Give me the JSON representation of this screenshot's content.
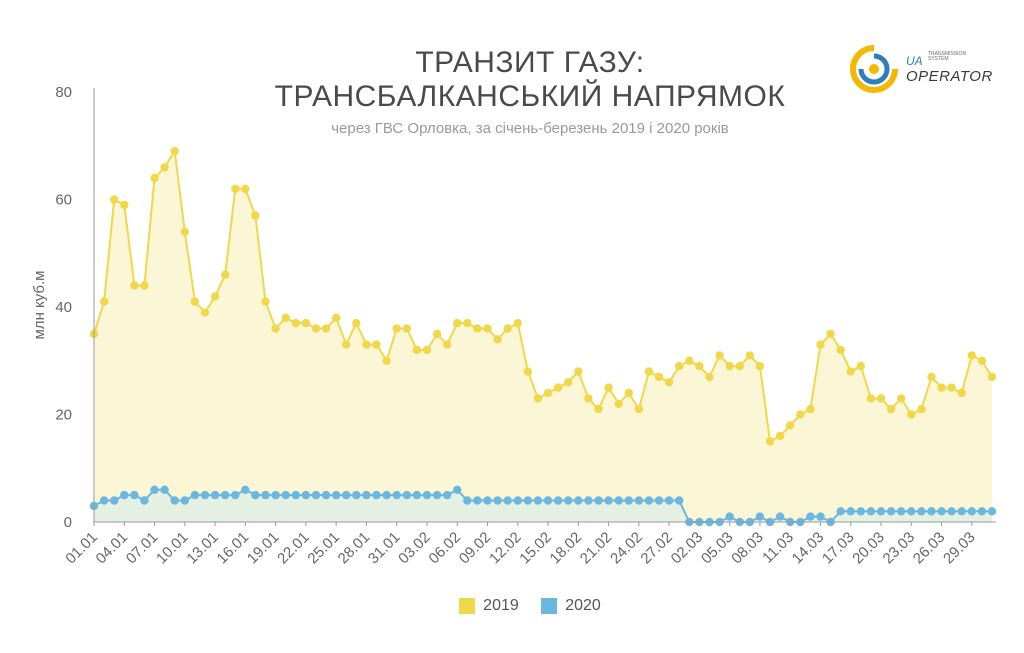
{
  "title_line1": "ТРАНЗИТ ГАЗУ:",
  "title_line2": "ТРАНСБАЛКАНСЬКИЙ НАПРЯМОК",
  "subtitle": "через ГВС Орловка, за січень-березень 2019 і 2020 років",
  "logo": {
    "line1": "UA",
    "line2": "OPERATOR",
    "tiny1": "TRANSMISSION",
    "tiny2": "SYSTEM"
  },
  "colors": {
    "s2019": "#f0d84a",
    "s2019_fill": "#fbf6d6",
    "s2020": "#6bb7e0",
    "s2020_fill": "#e4f0e2",
    "axis": "#999999"
  },
  "chart_data": {
    "type": "line",
    "ylabel": "млн куб.м",
    "ylim": [
      0,
      80
    ],
    "yticks": [
      0,
      20,
      40,
      60,
      80
    ],
    "xlabels": [
      "01.01",
      "04.01",
      "07.01",
      "10.01",
      "13.01",
      "16.01",
      "19.01",
      "22.01",
      "25.01",
      "28.01",
      "31.01",
      "03.02",
      "06.02",
      "09.02",
      "12.02",
      "15.02",
      "18.02",
      "21.02",
      "24.02",
      "27.02",
      "02.03",
      "05.03",
      "08.03",
      "11.03",
      "14.03",
      "17.03",
      "20.03",
      "23.03",
      "26.03",
      "29.03"
    ],
    "xlabel_step": 3,
    "legend_position": "bottom",
    "series": [
      {
        "name": "2019",
        "values": [
          35,
          41,
          60,
          59,
          44,
          44,
          64,
          66,
          69,
          54,
          41,
          39,
          42,
          46,
          62,
          62,
          57,
          41,
          36,
          38,
          37,
          37,
          36,
          36,
          38,
          33,
          37,
          33,
          33,
          30,
          36,
          36,
          32,
          32,
          35,
          33,
          37,
          37,
          36,
          36,
          34,
          36,
          37,
          28,
          23,
          24,
          25,
          26,
          28,
          23,
          21,
          25,
          22,
          24,
          21,
          28,
          27,
          26,
          29,
          30,
          29,
          27,
          31,
          29,
          29,
          31,
          29,
          15,
          16,
          18,
          20,
          21,
          33,
          35,
          32,
          28,
          29,
          23,
          23,
          21,
          23,
          20,
          21,
          27,
          25,
          25,
          24,
          31,
          30,
          27
        ]
      },
      {
        "name": "2020",
        "values": [
          3,
          4,
          4,
          5,
          5,
          4,
          6,
          6,
          4,
          4,
          5,
          5,
          5,
          5,
          5,
          6,
          5,
          5,
          5,
          5,
          5,
          5,
          5,
          5,
          5,
          5,
          5,
          5,
          5,
          5,
          5,
          5,
          5,
          5,
          5,
          5,
          6,
          4,
          4,
          4,
          4,
          4,
          4,
          4,
          4,
          4,
          4,
          4,
          4,
          4,
          4,
          4,
          4,
          4,
          4,
          4,
          4,
          4,
          4,
          0,
          0,
          0,
          0,
          1,
          0,
          0,
          1,
          0,
          1,
          0,
          0,
          1,
          1,
          0,
          2,
          2,
          2,
          2,
          2,
          2,
          2,
          2,
          2,
          2,
          2,
          2,
          2,
          2,
          2,
          2
        ]
      }
    ]
  }
}
